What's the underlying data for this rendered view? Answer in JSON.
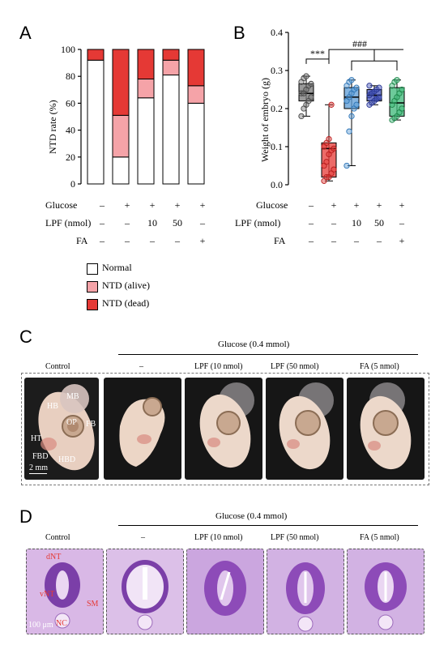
{
  "panels": {
    "a": "A",
    "b": "B",
    "c": "C",
    "d": "D"
  },
  "colors": {
    "normal": "#ffffff",
    "alive": "#f5a3a8",
    "dead": "#e53935"
  },
  "row_headers": {
    "glucose": "Glucose",
    "lpf": "LPF (nmol)",
    "fa": "FA"
  },
  "conditions": {
    "glucose": [
      "–",
      "+",
      "+",
      "+",
      "+"
    ],
    "lpf": [
      "–",
      "–",
      "10",
      "50",
      "–"
    ],
    "fa": [
      "–",
      "–",
      "–",
      "–",
      "+"
    ]
  },
  "chart_data": [
    {
      "type": "bar",
      "stacked": true,
      "ylabel": "NTD rate (%)",
      "ylim": [
        0,
        100
      ],
      "yticks": [
        0,
        20,
        40,
        60,
        80,
        100
      ],
      "series": [
        {
          "name": "Normal",
          "color": "#ffffff",
          "values": [
            92,
            20,
            64,
            81,
            60
          ]
        },
        {
          "name": "NTD (alive)",
          "color": "#f5a3a8",
          "values": [
            0,
            31,
            14,
            11,
            13
          ]
        },
        {
          "name": "NTD (dead)",
          "color": "#e53935",
          "values": [
            8,
            49,
            22,
            8,
            27
          ]
        }
      ]
    },
    {
      "type": "box",
      "ylabel": "Weight of embryo (g)",
      "ylim": [
        0.0,
        0.4
      ],
      "yticks": [
        "0.0",
        "0.1",
        "0.2",
        "0.3",
        "0.4"
      ],
      "boxes": [
        {
          "color": "#777777",
          "edge": "#444444",
          "min": 0.18,
          "q1": 0.22,
          "median": 0.24,
          "q3": 0.265,
          "max": 0.285,
          "points": [
            0.18,
            0.2,
            0.21,
            0.22,
            0.23,
            0.24,
            0.24,
            0.25,
            0.26,
            0.265,
            0.27,
            0.28,
            0.285
          ]
        },
        {
          "color": "#e53935",
          "edge": "#b71c1c",
          "min": 0.01,
          "q1": 0.02,
          "median": 0.095,
          "q3": 0.11,
          "max": 0.21,
          "points": [
            0.01,
            0.02,
            0.02,
            0.03,
            0.04,
            0.05,
            0.06,
            0.08,
            0.09,
            0.095,
            0.1,
            0.11,
            0.12,
            0.21
          ]
        },
        {
          "color": "#5b9bd5",
          "edge": "#2e75b6",
          "min": 0.05,
          "q1": 0.2,
          "median": 0.23,
          "q3": 0.255,
          "max": 0.275,
          "points": [
            0.05,
            0.14,
            0.18,
            0.2,
            0.21,
            0.22,
            0.23,
            0.24,
            0.25,
            0.255,
            0.26,
            0.27,
            0.275
          ]
        },
        {
          "color": "#3f4fb5",
          "edge": "#283593",
          "min": 0.21,
          "q1": 0.22,
          "median": 0.235,
          "q3": 0.25,
          "max": 0.26,
          "points": [
            0.21,
            0.215,
            0.22,
            0.225,
            0.23,
            0.235,
            0.24,
            0.245,
            0.25,
            0.255,
            0.26
          ]
        },
        {
          "color": "#3cb878",
          "edge": "#1e8449",
          "min": 0.17,
          "q1": 0.18,
          "median": 0.215,
          "q3": 0.255,
          "max": 0.275,
          "points": [
            0.17,
            0.175,
            0.18,
            0.19,
            0.2,
            0.21,
            0.22,
            0.23,
            0.24,
            0.25,
            0.26,
            0.27,
            0.275
          ]
        }
      ],
      "annotations": {
        "sig1": "***",
        "sig2": "###"
      }
    }
  ],
  "legend": [
    {
      "label": "Normal",
      "color": "#ffffff"
    },
    {
      "label": "NTD (alive)",
      "color": "#f5a3a8"
    },
    {
      "label": "NTD (dead)",
      "color": "#e53935"
    }
  ],
  "figure_c": {
    "header": "Glucose (0.4 mmol)",
    "cols": [
      "Control",
      "–",
      "LPF (10 nmol)",
      "LPF (50 nmol)",
      "FA (5 nmol)"
    ],
    "labels": {
      "mb": "MB",
      "hb": "HB",
      "op": "OP",
      "fb": "FB",
      "ht": "HT",
      "fbd": "FBD",
      "hbd": "HBD"
    },
    "scale": "2 mm"
  },
  "figure_d": {
    "header": "Glucose (0.4 mmol)",
    "cols": [
      "Control",
      "–",
      "LPF (10 nmol)",
      "LPF (50 nmol)",
      "FA (5 nmol)"
    ],
    "labels": {
      "dnt": "dNT",
      "vnt": "vNT",
      "nc": "NC",
      "sm": "SM"
    },
    "scale": "100 μm"
  }
}
